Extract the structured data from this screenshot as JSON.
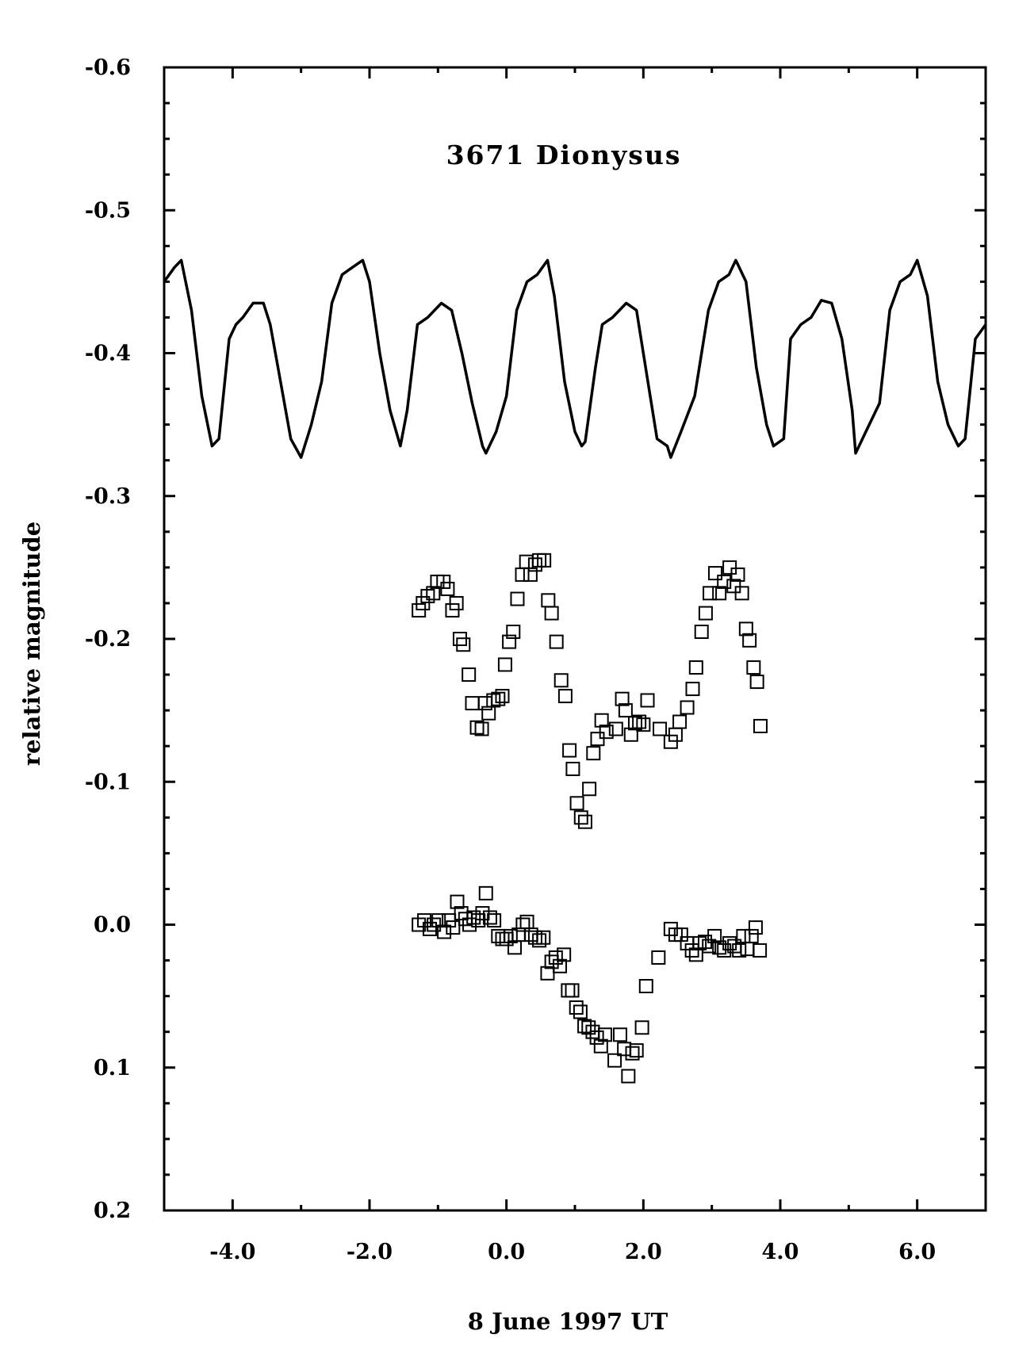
{
  "chart_data": {
    "type": "scatter",
    "title": "3671 Dionysus",
    "xlabel": "8 June 1997 UT",
    "ylabel": "relative magnitude",
    "xlim": [
      -5.0,
      7.0
    ],
    "ylim": [
      0.2,
      -0.6
    ],
    "y_inverted": true,
    "x_ticks": [
      -4.0,
      -2.0,
      0.0,
      2.0,
      4.0,
      6.0
    ],
    "x_tick_labels": [
      "-4.0",
      "-2.0",
      "0.0",
      "2.0",
      "4.0",
      "6.0"
    ],
    "y_ticks": [
      -0.6,
      -0.5,
      -0.4,
      -0.3,
      -0.2,
      -0.1,
      0.0,
      0.1,
      0.2
    ],
    "y_tick_labels": [
      "-0.6",
      "-0.5",
      "-0.4",
      "-0.3",
      "-0.2",
      "-0.1",
      "0.0",
      "0.1",
      "0.2"
    ],
    "grid": false,
    "colors": {
      "ink": "#000000",
      "background": "#ffffff"
    },
    "series": [
      {
        "type": "line",
        "x": [
          -5.0,
          -4.85,
          -4.75,
          -4.6,
          -4.45,
          -4.3,
          -4.2,
          -4.05,
          -3.95,
          -3.85,
          -3.7,
          -3.55,
          -3.45,
          -3.3,
          -3.15,
          -3.0,
          -2.85,
          -2.7,
          -2.55,
          -2.4,
          -2.25,
          -2.1,
          -2.0,
          -1.85,
          -1.7,
          -1.55,
          -1.45,
          -1.3,
          -1.15,
          -0.95,
          -0.8,
          -0.65,
          -0.5,
          -0.35,
          -0.3,
          -0.15,
          0.0,
          0.15,
          0.3,
          0.45,
          0.6,
          0.7,
          0.85,
          1.0,
          1.1,
          1.15,
          1.3,
          1.4,
          1.55,
          1.75,
          1.9,
          2.05,
          2.2,
          2.35,
          2.4,
          2.55,
          2.75,
          2.95,
          3.1,
          3.25,
          3.35,
          3.5,
          3.65,
          3.8,
          3.9,
          4.05,
          4.15,
          4.3,
          4.45,
          4.6,
          4.75,
          4.9,
          5.05,
          5.1,
          5.25,
          5.45,
          5.6,
          5.75,
          5.9,
          6.0,
          6.15,
          6.3,
          6.45,
          6.6,
          6.7,
          6.85,
          7.0
        ],
        "y": [
          -0.45,
          -0.46,
          -0.465,
          -0.43,
          -0.37,
          -0.335,
          -0.34,
          -0.41,
          -0.42,
          -0.425,
          -0.435,
          -0.435,
          -0.42,
          -0.38,
          -0.34,
          -0.327,
          -0.35,
          -0.38,
          -0.435,
          -0.455,
          -0.46,
          -0.465,
          -0.45,
          -0.4,
          -0.36,
          -0.335,
          -0.36,
          -0.42,
          -0.425,
          -0.435,
          -0.43,
          -0.4,
          -0.365,
          -0.335,
          -0.33,
          -0.345,
          -0.37,
          -0.43,
          -0.45,
          -0.455,
          -0.465,
          -0.44,
          -0.38,
          -0.345,
          -0.335,
          -0.338,
          -0.39,
          -0.42,
          -0.425,
          -0.435,
          -0.43,
          -0.385,
          -0.34,
          -0.335,
          -0.327,
          -0.345,
          -0.37,
          -0.43,
          -0.45,
          -0.455,
          -0.465,
          -0.45,
          -0.39,
          -0.35,
          -0.335,
          -0.34,
          -0.41,
          -0.42,
          -0.425,
          -0.437,
          -0.435,
          -0.41,
          -0.36,
          -0.33,
          -0.345,
          -0.365,
          -0.43,
          -0.45,
          -0.455,
          -0.465,
          -0.44,
          -0.38,
          -0.35,
          -0.335,
          -0.34,
          -0.41,
          -0.42
        ]
      },
      {
        "type": "scatter",
        "marker": "open-square",
        "x": [
          -1.28,
          -1.22,
          -1.15,
          -1.07,
          -1.01,
          -0.92,
          -0.86,
          -0.79,
          -0.73,
          -0.68,
          -0.63,
          -0.55,
          -0.5,
          -0.43,
          -0.36,
          -0.31,
          -0.26,
          -0.19,
          -0.12,
          -0.06,
          -0.02,
          0.04,
          0.1,
          0.16,
          0.23,
          0.29,
          0.35,
          0.42,
          0.48,
          0.55,
          0.61,
          0.66,
          0.73,
          0.8,
          0.86,
          0.92,
          0.97,
          1.03,
          1.09,
          1.15,
          1.21,
          1.27,
          1.33,
          1.39,
          1.46,
          1.6,
          1.69,
          1.74,
          1.82,
          1.88,
          1.94,
          2.0,
          2.06,
          2.24,
          2.4,
          2.47,
          2.53,
          2.64,
          2.72,
          2.77,
          2.85,
          2.91,
          2.97,
          3.05,
          3.11,
          3.18,
          3.26,
          3.32,
          3.38,
          3.44,
          3.5,
          3.55,
          3.61,
          3.66,
          3.71
        ],
        "y": [
          -0.22,
          -0.225,
          -0.23,
          -0.232,
          -0.24,
          -0.24,
          -0.235,
          -0.22,
          -0.225,
          -0.2,
          -0.196,
          -0.175,
          -0.155,
          -0.138,
          -0.137,
          -0.155,
          -0.148,
          -0.157,
          -0.158,
          -0.16,
          -0.182,
          -0.198,
          -0.205,
          -0.228,
          -0.245,
          -0.254,
          -0.245,
          -0.252,
          -0.255,
          -0.255,
          -0.227,
          -0.218,
          -0.198,
          -0.171,
          -0.16,
          -0.122,
          -0.109,
          -0.085,
          -0.075,
          -0.072,
          -0.095,
          -0.12,
          -0.13,
          -0.143,
          -0.135,
          -0.137,
          -0.158,
          -0.15,
          -0.133,
          -0.141,
          -0.142,
          -0.14,
          -0.157,
          -0.137,
          -0.128,
          -0.133,
          -0.142,
          -0.152,
          -0.165,
          -0.18,
          -0.205,
          -0.218,
          -0.232,
          -0.246,
          -0.232,
          -0.24,
          -0.25,
          -0.237,
          -0.245,
          -0.232,
          -0.207,
          -0.199,
          -0.18,
          -0.17,
          -0.139
        ]
      },
      {
        "type": "scatter",
        "marker": "open-square",
        "x": [
          -1.28,
          -1.2,
          -1.12,
          -1.06,
          -0.99,
          -0.91,
          -0.84,
          -0.78,
          -0.72,
          -0.66,
          -0.6,
          -0.54,
          -0.48,
          -0.41,
          -0.35,
          -0.3,
          -0.24,
          -0.18,
          -0.12,
          -0.06,
          0.0,
          0.06,
          0.12,
          0.18,
          0.24,
          0.3,
          0.36,
          0.42,
          0.48,
          0.54,
          0.6,
          0.66,
          0.72,
          0.78,
          0.84,
          0.9,
          0.96,
          1.02,
          1.08,
          1.14,
          1.2,
          1.26,
          1.32,
          1.38,
          1.44,
          1.58,
          1.66,
          1.72,
          1.78,
          1.84,
          1.9,
          1.98,
          2.04,
          2.22,
          2.4,
          2.47,
          2.55,
          2.64,
          2.71,
          2.77,
          2.82,
          2.9,
          2.96,
          3.04,
          3.11,
          3.18,
          3.26,
          3.33,
          3.4,
          3.46,
          3.52,
          3.58,
          3.64,
          3.7
        ],
        "y": [
          0.0,
          -0.003,
          0.003,
          0.0,
          -0.003,
          0.005,
          -0.003,
          0.002,
          -0.016,
          -0.008,
          -0.004,
          0.0,
          -0.005,
          -0.003,
          -0.008,
          -0.022,
          -0.005,
          -0.003,
          0.008,
          0.01,
          0.01,
          0.008,
          0.016,
          0.007,
          0.0,
          -0.002,
          0.007,
          0.009,
          0.011,
          0.009,
          0.034,
          0.026,
          0.023,
          0.029,
          0.021,
          0.046,
          0.046,
          0.058,
          0.061,
          0.071,
          0.072,
          0.075,
          0.079,
          0.085,
          0.077,
          0.095,
          0.077,
          0.087,
          0.106,
          0.09,
          0.088,
          0.072,
          0.043,
          0.023,
          0.003,
          0.007,
          0.007,
          0.013,
          0.018,
          0.021,
          0.013,
          0.012,
          0.015,
          0.008,
          0.016,
          0.018,
          0.013,
          0.015,
          0.018,
          0.008,
          0.017,
          0.008,
          0.002,
          0.018
        ]
      }
    ]
  }
}
